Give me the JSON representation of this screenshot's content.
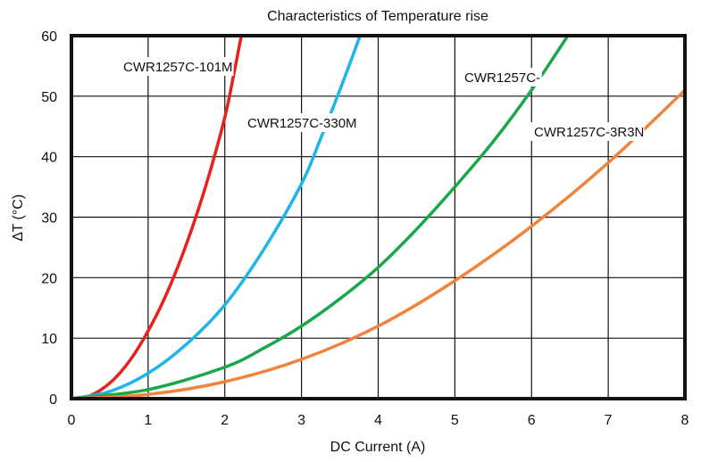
{
  "chart_data": {
    "type": "line",
    "title": "Characteristics of Temperature rise",
    "xlabel": "DC Current (A)",
    "ylabel": "∆T (°C)",
    "xlim": [
      0,
      8
    ],
    "ylim": [
      0,
      60
    ],
    "x_ticks": [
      "0",
      "1",
      "2",
      "3",
      "4",
      "5",
      "6",
      "7",
      "8"
    ],
    "y_ticks": [
      "0",
      "10",
      "20",
      "30",
      "40",
      "50",
      "60"
    ],
    "grid": true,
    "series": [
      {
        "name": "CWR1257C-101M",
        "color": "#e8211d",
        "x": [
          0,
          0.2,
          0.4,
          0.6,
          0.8,
          1.0,
          1.2,
          1.4,
          1.6,
          1.8,
          2.0,
          2.1,
          2.2,
          2.25
        ],
        "y": [
          0,
          0.3,
          1.6,
          3.8,
          7.0,
          11.2,
          16.2,
          22.2,
          29.2,
          37.2,
          46.5,
          52.5,
          59.0,
          62.0
        ]
      },
      {
        "name": "CWR1257C-330M",
        "color": "#1fb4ec",
        "x": [
          0,
          0.5,
          1.0,
          1.5,
          2.0,
          2.5,
          3.0,
          3.25,
          3.5,
          3.75,
          3.8
        ],
        "y": [
          0,
          1.2,
          4.2,
          9.0,
          15.5,
          24.5,
          35.5,
          43.0,
          51.0,
          59.5,
          61.5
        ]
      },
      {
        "name": "CWR1257C-",
        "color": "#18a84a",
        "x": [
          0,
          1.0,
          2.0,
          2.5,
          3.0,
          3.5,
          4.0,
          4.5,
          5.0,
          5.5,
          6.0,
          6.5
        ],
        "y": [
          0,
          1.5,
          5.2,
          8.3,
          12.0,
          16.5,
          21.7,
          28.0,
          35.0,
          42.5,
          51.0,
          60.5
        ]
      },
      {
        "name": "CWR1257C-3R3N",
        "color": "#f0843c",
        "x": [
          0,
          1.0,
          2.0,
          3.0,
          4.0,
          5.0,
          6.0,
          7.0,
          8.0
        ],
        "y": [
          0,
          0.7,
          2.8,
          6.5,
          12.0,
          19.5,
          28.5,
          39.0,
          51.0
        ]
      }
    ]
  }
}
